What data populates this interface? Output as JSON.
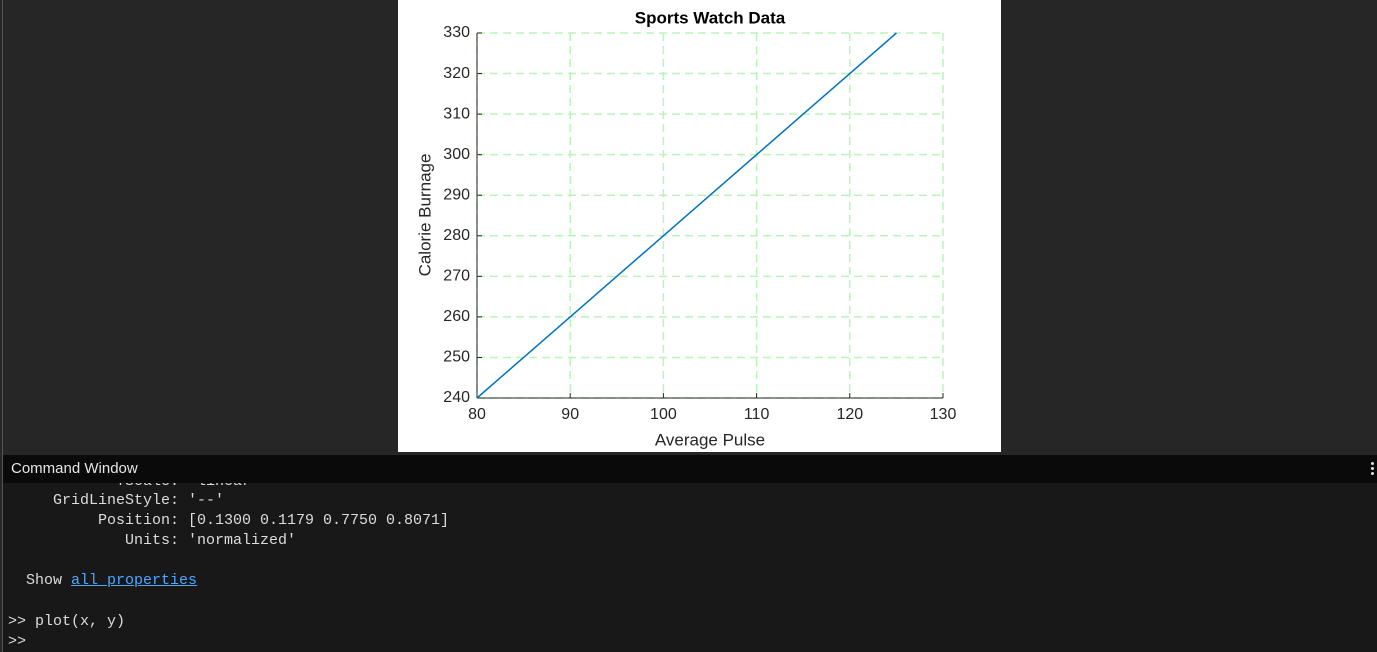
{
  "chart_data": {
    "type": "line",
    "title": "Sports Watch Data",
    "x_label": "Average Pulse",
    "y_label": "Calorie Burnage",
    "x": [
      80,
      85,
      90,
      95,
      100,
      105,
      110,
      115,
      120,
      125
    ],
    "series": [
      {
        "color": "#0072bd",
        "values": [
          240,
          250,
          260,
          270,
          280,
          290,
          300,
          310,
          320,
          330
        ]
      }
    ],
    "xlim": [
      80,
      130
    ],
    "xticks": [
      80,
      90,
      100,
      110,
      120,
      130
    ],
    "ylim": [
      240,
      330
    ],
    "yticks": [
      240,
      250,
      260,
      270,
      280,
      290,
      300,
      310,
      320,
      330
    ],
    "grid": true,
    "grid_color": "#b9f5b9"
  },
  "command_window": {
    "title": "Command Window",
    "properties": [
      {
        "name": "YScale:",
        "value": "'linear'"
      },
      {
        "name": "GridLineStyle:",
        "value": "'--'"
      },
      {
        "name": "Position:",
        "value": "[0.1300 0.1179 0.7750 0.8071]"
      },
      {
        "name": "Units:",
        "value": "'normalized'"
      }
    ],
    "show": "Show",
    "link": "all properties",
    "lines": [
      ">> plot(x, y)",
      ">>"
    ]
  }
}
